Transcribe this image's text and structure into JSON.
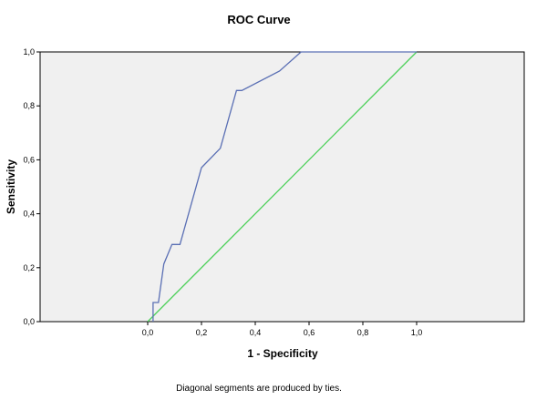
{
  "chart_data": {
    "type": "line",
    "title": "ROC Curve",
    "xlabel": "1 - Specificity",
    "ylabel": "Sensitivity",
    "footnote": "Diagonal segments are produced by ties.",
    "xlim": [
      -0.4,
      1.4
    ],
    "ylim": [
      0,
      1
    ],
    "x_ticks": [
      "0,0",
      "0,2",
      "0,4",
      "0,6",
      "0,8",
      "1,0"
    ],
    "y_ticks": [
      "0,0",
      "0,2",
      "0,4",
      "0,6",
      "0,8",
      "1,0"
    ],
    "grid": false,
    "background": "#f0f0f0",
    "series": [
      {
        "color": "#5a6fb4",
        "x": [
          0.02,
          0.02,
          0.04,
          0.06,
          0.09,
          0.12,
          0.2,
          0.27,
          0.33,
          0.35,
          0.49,
          0.57,
          1.0
        ],
        "y": [
          0.0,
          0.071,
          0.071,
          0.214,
          0.286,
          0.286,
          0.571,
          0.643,
          0.857,
          0.857,
          0.929,
          1.0,
          1.0
        ]
      },
      {
        "color": "#4dd05a",
        "x": [
          0.0,
          1.0
        ],
        "y": [
          0.0,
          1.0
        ]
      }
    ]
  }
}
